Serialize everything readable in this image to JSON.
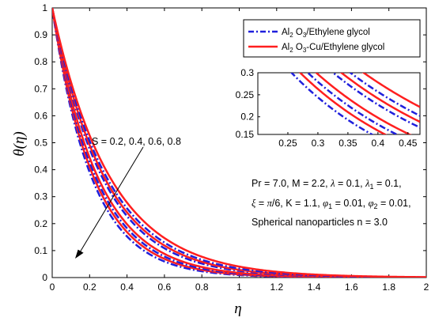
{
  "chart_data": {
    "type": "line",
    "xlabel": "η",
    "ylabel": "θ(η)",
    "xlim": [
      0,
      2
    ],
    "ylim": [
      0,
      1
    ],
    "x_ticks": [
      "0",
      "0.2",
      "0.4",
      "0.6",
      "0.8",
      "1",
      "1.2",
      "1.4",
      "1.6",
      "1.8",
      "2"
    ],
    "y_ticks": [
      "0",
      "0.1",
      "0.2",
      "0.3",
      "0.4",
      "0.5",
      "0.6",
      "0.7",
      "0.8",
      "0.9",
      "1"
    ],
    "legend": {
      "placement": "top-right",
      "items": [
        {
          "label": "Al",
          "sub": "2",
          "rest": " O",
          "sub2": "3",
          "tail": "/Ethylene glycol",
          "color": "#1f1fdc",
          "style": "dash-dot"
        },
        {
          "label": "Al",
          "sub": "2",
          "rest": " O",
          "sub2": "3",
          "tail": "-Cu/Ethylene glycol",
          "color": "#ff1f1f",
          "style": "solid"
        }
      ]
    },
    "annotation_arrow": "S = 0.2, 0.4, 0.6, 0.8",
    "params": {
      "line1_a": "Pr = 7.0, M = 2.2, ",
      "lambda": "λ",
      "line1_b": " = 0.1, ",
      "lambda1_sub": "1",
      "line1_c": " = 0.1,",
      "xi": "ξ",
      "line2_a": " = ",
      "pi": "π",
      "line2_b": "/6, K = 1.1, ",
      "phi": "φ",
      "phi1_sub": "1",
      "line2_c": " = 0.01, ",
      "phi2_sub": "2",
      "line2_d": " = 0.01,",
      "line3": "Spherical nanoparticles n = 3.0"
    },
    "inset": {
      "xlim": [
        0.2,
        0.47
      ],
      "ylim": [
        0.16,
        0.3
      ],
      "x_ticks": [
        "0.25",
        "0.3",
        "0.35",
        "0.4",
        "0.45"
      ],
      "y_ticks": [
        "0.15",
        "0.2",
        "0.25",
        "0.3"
      ]
    },
    "series_model": "theta(eta) = exp(-k * eta)",
    "series": [
      {
        "name": "Al2O3/Ethylene glycol",
        "S": 0.2,
        "k": 4.7,
        "color": "#1f1fdc",
        "style": "dash-dot"
      },
      {
        "name": "Al2O3-Cu/Ethylene glycol",
        "S": 0.2,
        "k": 4.45,
        "color": "#ff1f1f",
        "style": "solid"
      },
      {
        "name": "Al2O3/Ethylene glycol",
        "S": 0.4,
        "k": 4.25,
        "color": "#1f1fdc",
        "style": "dash-dot"
      },
      {
        "name": "Al2O3-Cu/Ethylene glycol",
        "S": 0.4,
        "k": 4.05,
        "color": "#ff1f1f",
        "style": "solid"
      },
      {
        "name": "Al2O3/Ethylene glycol",
        "S": 0.6,
        "k": 3.7,
        "color": "#1f1fdc",
        "style": "dash-dot"
      },
      {
        "name": "Al2O3-Cu/Ethylene glycol",
        "S": 0.6,
        "k": 3.55,
        "color": "#ff1f1f",
        "style": "solid"
      },
      {
        "name": "Al2O3/Ethylene glycol",
        "S": 0.8,
        "k": 3.4,
        "color": "#1f1fdc",
        "style": "dash-dot"
      },
      {
        "name": "Al2O3-Cu/Ethylene glycol",
        "S": 0.8,
        "k": 3.2,
        "color": "#ff1f1f",
        "style": "solid"
      }
    ]
  }
}
